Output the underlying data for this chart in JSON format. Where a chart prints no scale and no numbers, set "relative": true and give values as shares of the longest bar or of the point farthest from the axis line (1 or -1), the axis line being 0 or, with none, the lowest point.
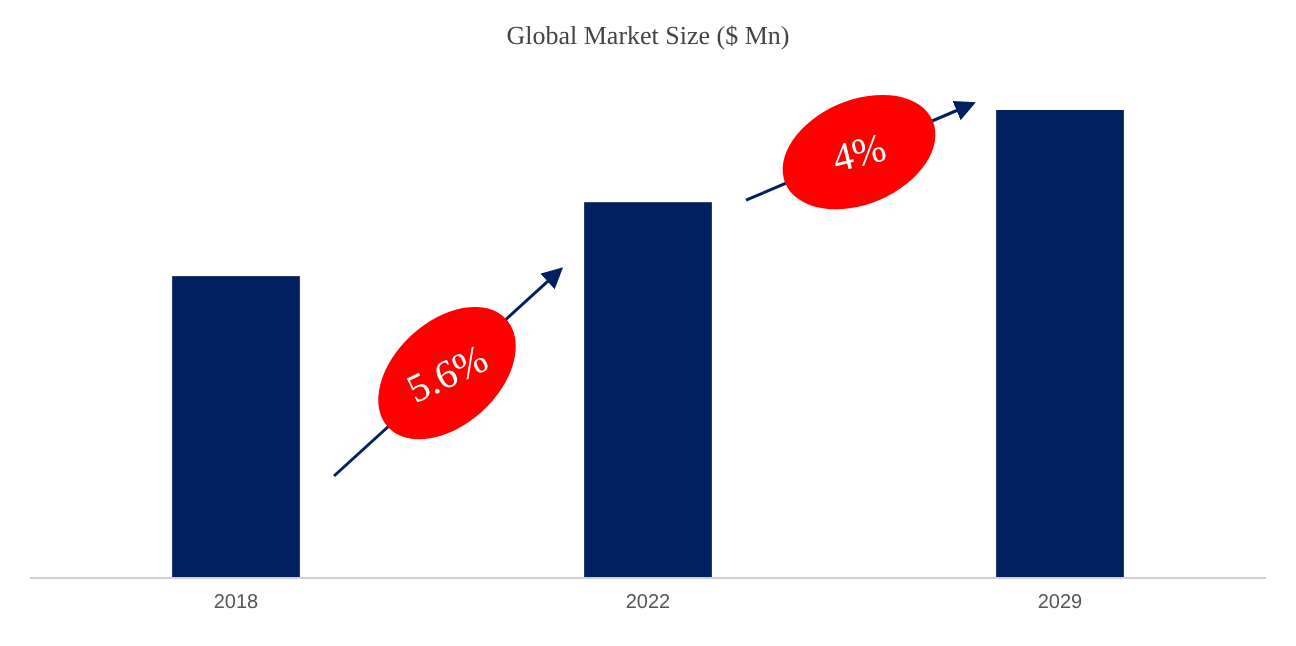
{
  "chart_data": {
    "type": "bar",
    "title": "Global Market Size ($ Mn)",
    "categories": [
      "2018",
      "2022",
      "2029"
    ],
    "values": [
      0.645,
      0.803,
      1
    ],
    "color": "#002060",
    "relative": true,
    "annotations": [
      "5.6%",
      "4%"
    ]
  }
}
